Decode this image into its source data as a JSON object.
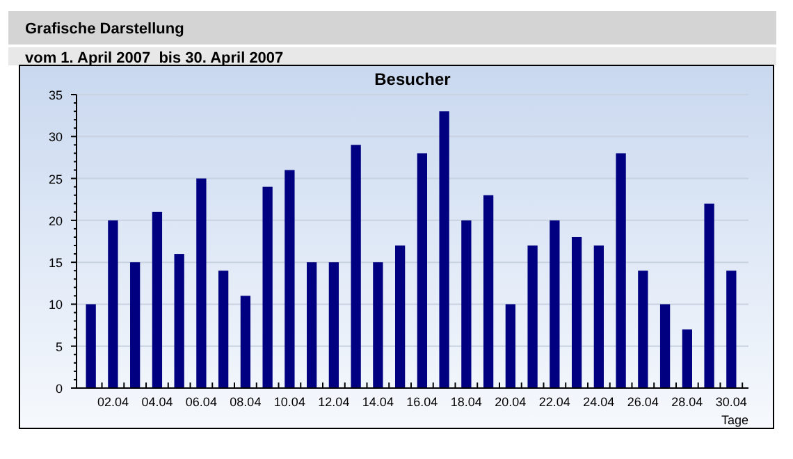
{
  "chart_data": {
    "type": "bar",
    "title": "Grafische Darstellung",
    "subtitle": "vom 1. April 2007  bis 30. April 2007",
    "ylabel": "Besucher",
    "xlabel": "Tage",
    "categories": [
      null,
      "02.04",
      null,
      "04.04",
      null,
      "06.04",
      null,
      "08.04",
      null,
      "10.04",
      null,
      "12.04",
      null,
      "14.04",
      null,
      "16.04",
      null,
      "18.04",
      null,
      "20.04",
      null,
      "22.04",
      null,
      "24.04",
      null,
      "26.04",
      null,
      "28.04",
      null,
      "30.04"
    ],
    "values": [
      10,
      20,
      15,
      21,
      16,
      25,
      14,
      11,
      24,
      26,
      15,
      15,
      29,
      15,
      17,
      28,
      33,
      20,
      23,
      10,
      17,
      20,
      18,
      17,
      28,
      14,
      10,
      7,
      22,
      14
    ],
    "color": "#000080",
    "ylim": [
      0,
      35
    ],
    "yticks": [
      0,
      5,
      10,
      15,
      20,
      25,
      30,
      35
    ],
    "grid": "y"
  }
}
